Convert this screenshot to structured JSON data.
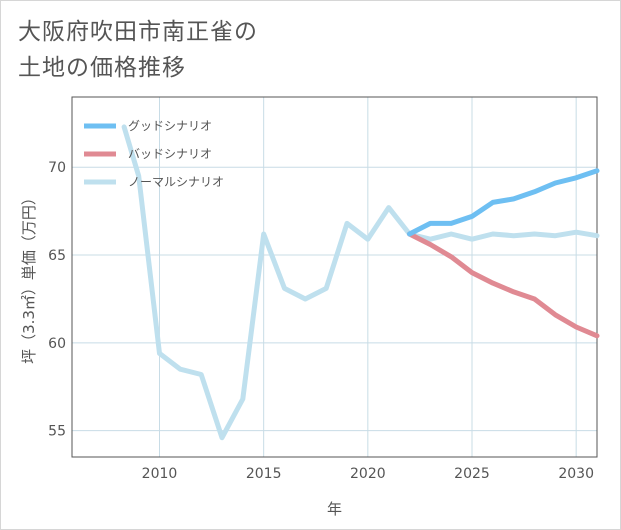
{
  "title_lines": [
    "大阪府吹田市南正雀の",
    "土地の価格推移"
  ],
  "colors": {
    "good": "#6ebff2",
    "bad": "#e08a93",
    "normal": "#bfe0ee",
    "grid": "#c8dce6",
    "axis": "#555555"
  },
  "chart_data": {
    "type": "line",
    "title": "大阪府吹田市南正雀の 土地の価格推移",
    "xlabel": "年",
    "ylabel": "坪（3.3㎡）単価（万円）",
    "xlim": [
      2005.8,
      2031
    ],
    "ylim": [
      53.5,
      74
    ],
    "xticks": [
      2010,
      2015,
      2020,
      2025,
      2030
    ],
    "yticks": [
      55,
      60,
      65,
      70
    ],
    "grid": true,
    "legend_position": "top-left",
    "series": [
      {
        "name": "グッドシナリオ",
        "color_key": "good",
        "x": [
          2022,
          2023,
          2024,
          2025,
          2026,
          2027,
          2028,
          2029,
          2030,
          2031
        ],
        "y": [
          66.2,
          66.8,
          66.8,
          67.2,
          68.0,
          68.2,
          68.6,
          69.1,
          69.4,
          69.8
        ]
      },
      {
        "name": "バッドシナリオ",
        "color_key": "bad",
        "x": [
          2022,
          2023,
          2024,
          2025,
          2026,
          2027,
          2028,
          2029,
          2030,
          2031
        ],
        "y": [
          66.2,
          65.6,
          64.9,
          64.0,
          63.4,
          62.9,
          62.5,
          61.6,
          60.9,
          60.4
        ]
      },
      {
        "name": "ノーマルシナリオ",
        "color_key": "normal",
        "x": [
          2008.3,
          2009,
          2010,
          2011,
          2012,
          2013,
          2014,
          2015,
          2016,
          2017,
          2018,
          2019,
          2020,
          2021,
          2022,
          2023,
          2024,
          2025,
          2026,
          2027,
          2028,
          2029,
          2030,
          2031
        ],
        "y": [
          72.3,
          69.5,
          59.4,
          58.5,
          58.2,
          54.6,
          56.8,
          66.2,
          63.1,
          62.5,
          63.1,
          66.8,
          65.9,
          67.7,
          66.2,
          65.9,
          66.2,
          65.9,
          66.2,
          66.1,
          66.2,
          66.1,
          66.3,
          66.1
        ]
      }
    ]
  }
}
